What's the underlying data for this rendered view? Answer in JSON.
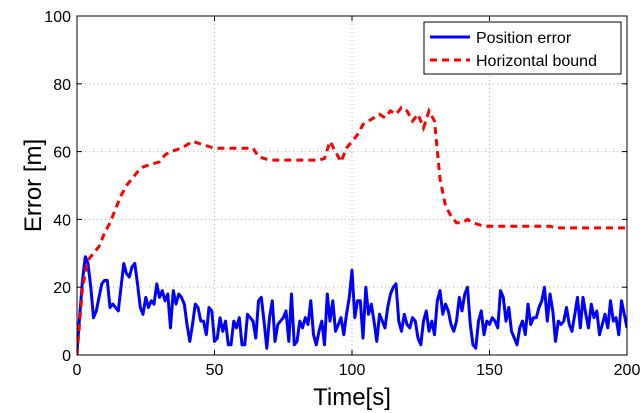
{
  "chart_data": {
    "type": "line",
    "xlabel": "Time[s]",
    "ylabel": "Error [m]",
    "xlim": [
      0,
      200
    ],
    "ylim": [
      0,
      100
    ],
    "xticks": [
      0,
      50,
      100,
      150,
      200
    ],
    "yticks": [
      0,
      20,
      40,
      60,
      80,
      100
    ],
    "grid": true,
    "legend_position": "top-right",
    "series": [
      {
        "name": "Position error",
        "color": "#0000ff",
        "style": "solid",
        "x": [
          0,
          1,
          2,
          3,
          4,
          5,
          6,
          7,
          8,
          9,
          10,
          11,
          12,
          13,
          14,
          15,
          16,
          17,
          18,
          19,
          20,
          21,
          22,
          23,
          24,
          25,
          26,
          27,
          28,
          29,
          30,
          31,
          32,
          33,
          34,
          35,
          36,
          37,
          38,
          39,
          40,
          41,
          42,
          43,
          44,
          45,
          46,
          47,
          48,
          49,
          50,
          51,
          52,
          53,
          54,
          55,
          56,
          57,
          58,
          59,
          60,
          61,
          62,
          63,
          64,
          65,
          66,
          67,
          68,
          69,
          70,
          71,
          72,
          73,
          74,
          75,
          76,
          77,
          78,
          79,
          80,
          81,
          82,
          83,
          84,
          85,
          86,
          87,
          88,
          89,
          90,
          91,
          92,
          93,
          94,
          95,
          96,
          97,
          98,
          99,
          100,
          101,
          102,
          103,
          104,
          105,
          106,
          107,
          108,
          109,
          110,
          111,
          112,
          113,
          114,
          115,
          116,
          117,
          118,
          119,
          120,
          121,
          122,
          123,
          124,
          125,
          126,
          127,
          128,
          129,
          130,
          131,
          132,
          133,
          134,
          135,
          136,
          137,
          138,
          139,
          140,
          141,
          142,
          143,
          144,
          145,
          146,
          147,
          148,
          149,
          150,
          151,
          152,
          153,
          154,
          155,
          156,
          157,
          158,
          159,
          160,
          161,
          162,
          163,
          164,
          165,
          166,
          167,
          168,
          169,
          170,
          171,
          172,
          173,
          174,
          175,
          176,
          177,
          178,
          179,
          180,
          181,
          182,
          183,
          184,
          185,
          186,
          187,
          188,
          189,
          190,
          191,
          192,
          193,
          194,
          195,
          196,
          197,
          198,
          199,
          200
        ],
        "y": [
          1,
          12,
          22,
          29,
          27,
          20,
          11,
          13,
          17,
          21,
          22,
          22,
          14,
          15,
          14,
          13,
          20,
          27,
          24,
          23,
          26,
          27,
          21,
          14,
          12,
          17,
          14,
          16,
          15,
          21,
          17,
          19,
          16,
          18,
          8,
          19,
          15,
          18,
          17,
          15,
          9,
          4,
          9,
          15,
          14,
          10,
          10,
          6,
          14,
          13,
          4,
          5,
          11,
          7,
          10,
          3,
          3,
          10,
          8,
          11,
          3,
          3,
          12,
          11,
          10,
          5,
          16,
          17,
          10,
          2,
          11,
          16,
          4,
          9,
          10,
          11,
          13,
          4,
          18,
          3,
          4,
          10,
          8,
          11,
          9,
          16,
          6,
          3,
          7,
          10,
          3,
          18,
          10,
          16,
          7,
          9,
          11,
          6,
          12,
          17,
          25,
          11,
          16,
          16,
          5,
          20,
          12,
          15,
          10,
          4,
          12,
          10,
          8,
          14,
          18,
          20,
          21,
          10,
          7,
          12,
          9,
          8,
          11,
          10,
          5,
          3,
          10,
          13,
          7,
          10,
          6,
          16,
          19,
          12,
          15,
          13,
          9,
          7,
          10,
          17,
          13,
          18,
          20,
          9,
          3,
          2,
          10,
          13,
          6,
          10,
          9,
          11,
          10,
          8,
          19,
          17,
          10,
          14,
          7,
          5,
          3,
          8,
          10,
          6,
          15,
          9,
          11,
          11,
          14,
          16,
          20,
          10,
          18,
          13,
          4,
          10,
          9,
          10,
          14,
          9,
          7,
          12,
          17,
          8,
          17,
          12,
          8,
          15,
          11,
          13,
          6,
          9,
          12,
          8,
          16,
          10,
          11,
          6,
          16,
          12,
          8
        ],
        "note": "approximate"
      },
      {
        "name": "Horizontal bound",
        "color": "#ff0000",
        "style": "dashed",
        "x": [
          0,
          2,
          4,
          6,
          8,
          10,
          12,
          14,
          16,
          18,
          20,
          22,
          24,
          26,
          28,
          30,
          32,
          34,
          36,
          38,
          40,
          42,
          44,
          46,
          48,
          50,
          52,
          54,
          56,
          58,
          60,
          62,
          64,
          66,
          68,
          70,
          72,
          74,
          76,
          78,
          80,
          82,
          84,
          86,
          88,
          90,
          92,
          94,
          96,
          98,
          100,
          102,
          104,
          106,
          108,
          110,
          112,
          114,
          116,
          118,
          120,
          122,
          124,
          126,
          128,
          130,
          132,
          134,
          136,
          138,
          140,
          142,
          144,
          146,
          148,
          150,
          152,
          154,
          156,
          158,
          160,
          162,
          164,
          166,
          168,
          170,
          172,
          174,
          176,
          178,
          180,
          182,
          184,
          186,
          188,
          190,
          192,
          194,
          196,
          198,
          200
        ],
        "y": [
          0,
          20,
          28,
          30,
          32,
          36,
          39,
          43,
          47,
          50,
          52,
          54,
          55.5,
          56,
          56.5,
          57,
          59,
          60,
          60.5,
          61,
          62,
          63,
          62.5,
          62,
          61.5,
          61,
          61,
          61,
          61,
          61,
          61,
          61,
          61,
          58.5,
          58,
          57.5,
          57.5,
          57.5,
          57.5,
          57.5,
          57.5,
          57.5,
          57.5,
          57.5,
          57.5,
          58,
          63,
          60,
          57,
          61,
          63,
          65,
          68,
          69,
          70,
          71,
          70,
          72,
          71,
          73,
          72,
          69,
          71,
          67,
          72,
          69,
          52,
          44,
          41,
          39,
          39,
          40,
          39,
          38.5,
          38,
          38,
          38,
          38,
          38,
          38,
          38,
          38,
          38,
          38,
          38,
          38,
          38,
          37.5,
          37.5,
          37.5,
          37.5,
          37.5,
          37.5,
          37.5,
          37.5,
          37.5,
          37.5,
          37.5,
          37.5,
          37.5,
          37.5
        ],
        "note": "approximate"
      }
    ]
  }
}
